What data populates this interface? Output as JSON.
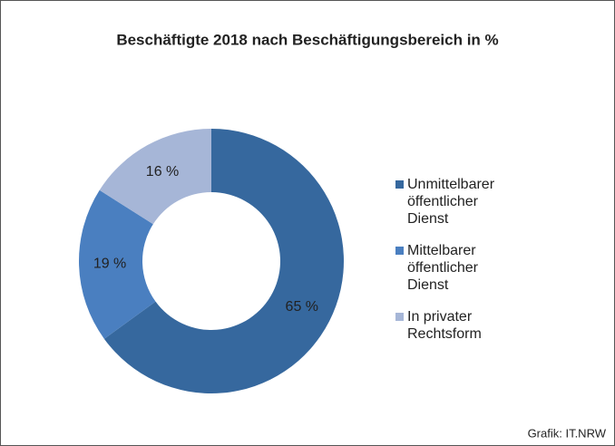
{
  "chart_data": {
    "type": "donut",
    "title": "Beschäftigte 2018 nach Beschäftigungsbereich in %",
    "categories": [
      "Unmittelbarer öffentlicher Dienst",
      "Mittelbarer öffentlicher Dienst",
      "In privater Rechtsform"
    ],
    "values": [
      65,
      19,
      16
    ],
    "value_labels": [
      "65 %",
      "19 %",
      "16 %"
    ],
    "colors": [
      "#36689e",
      "#4a7fc0",
      "#a6b6d7"
    ],
    "legend": "right",
    "source": "Grafik: IT.NRW"
  }
}
